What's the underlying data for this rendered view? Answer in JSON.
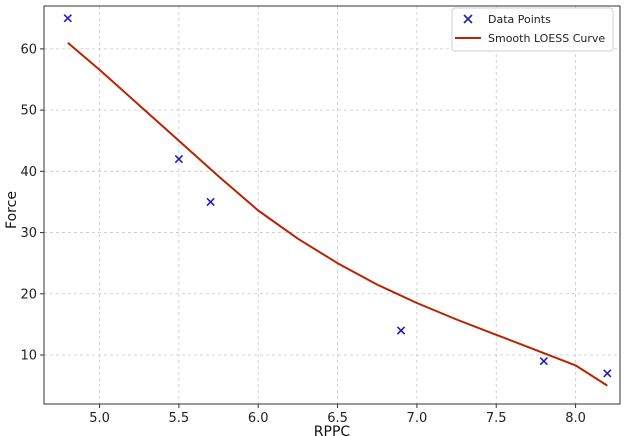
{
  "chart_data": {
    "type": "scatter",
    "title": "",
    "xlabel": "RPPC",
    "ylabel": "Force",
    "xlim": [
      4.65,
      8.28
    ],
    "ylim": [
      2,
      67
    ],
    "x_ticks": [
      5.0,
      5.5,
      6.0,
      6.5,
      7.0,
      7.5,
      8.0
    ],
    "x_tick_labels": [
      "5.0",
      "5.5",
      "6.0",
      "6.5",
      "7.0",
      "7.5",
      "8.0"
    ],
    "y_ticks": [
      10,
      20,
      30,
      40,
      50,
      60
    ],
    "y_tick_labels": [
      "10",
      "20",
      "30",
      "40",
      "50",
      "60"
    ],
    "grid": true,
    "legend_position": "top-right",
    "series": [
      {
        "name": "Data Points",
        "kind": "scatter",
        "marker": "x",
        "color": "#1f1fbf",
        "x": [
          4.8,
          5.5,
          5.7,
          6.9,
          7.8,
          8.2
        ],
        "y": [
          65,
          42,
          35,
          14,
          9,
          7
        ]
      },
      {
        "name": "Smooth LOESS Curve",
        "kind": "line",
        "color": "#bb2200",
        "x": [
          4.8,
          5.0,
          5.25,
          5.5,
          5.75,
          6.0,
          6.25,
          6.5,
          6.75,
          7.0,
          7.25,
          7.5,
          7.75,
          8.0,
          8.2
        ],
        "y": [
          61.0,
          56.6,
          50.8,
          45.0,
          39.2,
          33.6,
          29.0,
          25.0,
          21.5,
          18.5,
          15.8,
          13.3,
          10.8,
          8.3,
          5.0
        ]
      }
    ]
  }
}
